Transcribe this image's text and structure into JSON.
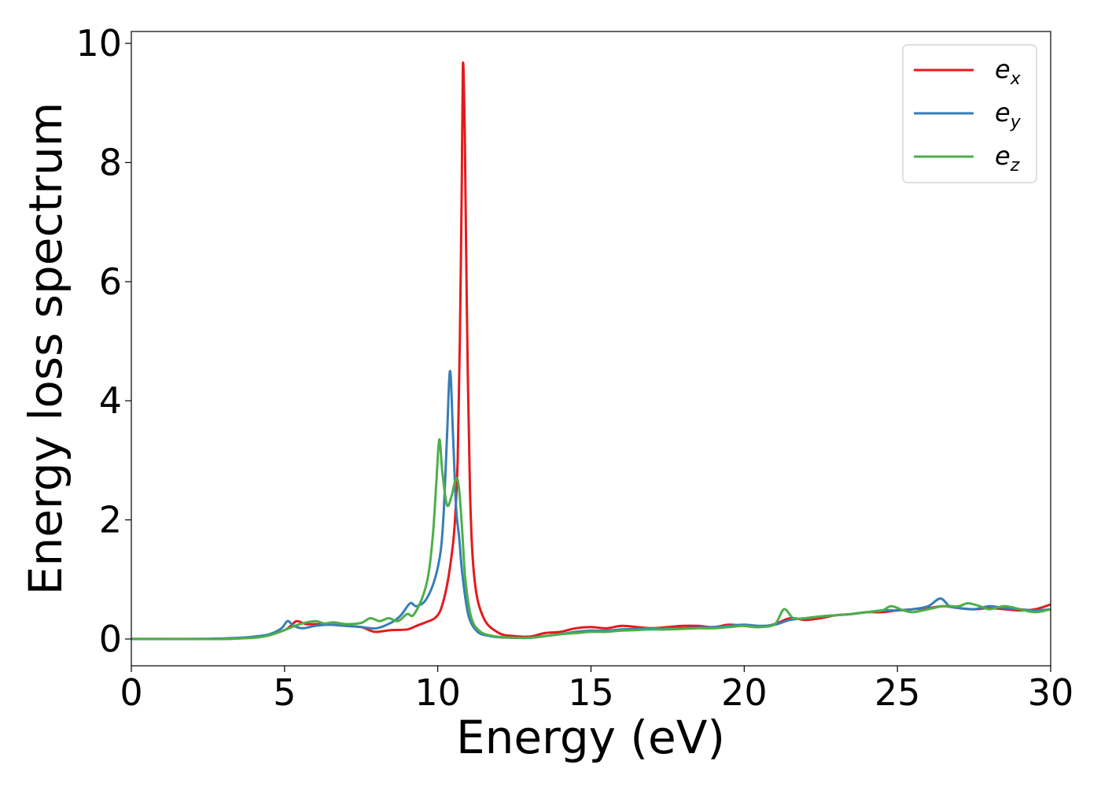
{
  "chart_data": {
    "type": "line",
    "title": "",
    "xlabel": "Energy (eV)",
    "ylabel": "Energy loss spectrum",
    "xlim": [
      0,
      30
    ],
    "ylim": [
      -0.45,
      10.2
    ],
    "xticks": [
      0,
      5,
      10,
      15,
      20,
      25,
      30
    ],
    "yticks": [
      0,
      2,
      4,
      6,
      8,
      10
    ],
    "grid": false,
    "legend_position": "top-right",
    "series": [
      {
        "name": "e",
        "subscript": "x",
        "color": "#e41a1c",
        "x": [
          0,
          1,
          2,
          3,
          3.5,
          4,
          4.5,
          5,
          5.2,
          5.4,
          5.7,
          6,
          6.5,
          7,
          7.5,
          7.8,
          8,
          8.5,
          9,
          9.3,
          9.6,
          9.9,
          10.1,
          10.3,
          10.45,
          10.55,
          10.65,
          10.72,
          10.78,
          10.82,
          10.88,
          10.95,
          11.05,
          11.2,
          11.5,
          12,
          12.5,
          13,
          13.5,
          14,
          14.5,
          15,
          15.5,
          16,
          16.5,
          17,
          17.5,
          18,
          18.5,
          19,
          19.5,
          20,
          20.5,
          21,
          21.5,
          22,
          22.5,
          23,
          23.5,
          24,
          24.5,
          25,
          25.5,
          26,
          26.5,
          27,
          27.5,
          28,
          28.5,
          29,
          29.5,
          30
        ],
        "y": [
          0,
          0,
          0,
          0,
          0.01,
          0.03,
          0.07,
          0.15,
          0.22,
          0.3,
          0.25,
          0.25,
          0.24,
          0.22,
          0.2,
          0.14,
          0.12,
          0.15,
          0.16,
          0.22,
          0.28,
          0.35,
          0.5,
          0.9,
          1.4,
          1.9,
          3.0,
          5.0,
          7.5,
          9.65,
          8.5,
          5.5,
          2.5,
          1.0,
          0.35,
          0.1,
          0.05,
          0.04,
          0.1,
          0.12,
          0.18,
          0.2,
          0.18,
          0.22,
          0.2,
          0.18,
          0.2,
          0.22,
          0.22,
          0.2,
          0.24,
          0.22,
          0.2,
          0.25,
          0.35,
          0.32,
          0.35,
          0.4,
          0.42,
          0.45,
          0.45,
          0.48,
          0.5,
          0.52,
          0.55,
          0.52,
          0.5,
          0.52,
          0.5,
          0.48,
          0.5,
          0.58
        ]
      },
      {
        "name": "e",
        "subscript": "y",
        "color": "#377eb8",
        "x": [
          0,
          1,
          2,
          3,
          3.5,
          4,
          4.5,
          4.9,
          5.1,
          5.3,
          5.6,
          6,
          6.5,
          7,
          7.5,
          8,
          8.5,
          8.8,
          9.1,
          9.3,
          9.6,
          9.9,
          10.1,
          10.2,
          10.3,
          10.4,
          10.5,
          10.6,
          10.7,
          10.8,
          11,
          11.3,
          11.7,
          12,
          12.5,
          13,
          13.5,
          14,
          14.5,
          15,
          15.5,
          16,
          16.5,
          17,
          17.5,
          18,
          18.5,
          19,
          19.5,
          20,
          20.5,
          21,
          21.5,
          22,
          22.5,
          23,
          23.5,
          24,
          24.5,
          25,
          25.5,
          26,
          26.4,
          26.7,
          27,
          27.5,
          28,
          28.5,
          29,
          29.5,
          30
        ],
        "y": [
          0,
          0,
          0,
          0.01,
          0.02,
          0.04,
          0.08,
          0.18,
          0.3,
          0.22,
          0.18,
          0.22,
          0.24,
          0.22,
          0.2,
          0.18,
          0.28,
          0.4,
          0.6,
          0.55,
          0.65,
          1.0,
          1.5,
          2.2,
          3.4,
          4.5,
          3.4,
          2.2,
          1.7,
          1.1,
          0.4,
          0.12,
          0.05,
          0.03,
          0.02,
          0.02,
          0.05,
          0.08,
          0.12,
          0.14,
          0.14,
          0.16,
          0.17,
          0.18,
          0.18,
          0.18,
          0.19,
          0.2,
          0.22,
          0.24,
          0.22,
          0.24,
          0.32,
          0.35,
          0.38,
          0.4,
          0.42,
          0.45,
          0.48,
          0.48,
          0.5,
          0.55,
          0.68,
          0.55,
          0.52,
          0.5,
          0.55,
          0.52,
          0.5,
          0.48,
          0.5
        ]
      },
      {
        "name": "e",
        "subscript": "z",
        "color": "#4daf4a",
        "x": [
          0,
          1,
          2,
          3,
          3.5,
          4,
          4.5,
          5,
          5.5,
          6,
          6.3,
          6.6,
          7,
          7.5,
          7.8,
          8.1,
          8.4,
          8.7,
          9,
          9.2,
          9.5,
          9.7,
          9.85,
          9.95,
          10.05,
          10.15,
          10.3,
          10.45,
          10.6,
          10.7,
          10.8,
          10.9,
          11.1,
          11.4,
          11.8,
          12.2,
          12.6,
          13,
          13.5,
          14,
          14.5,
          15,
          15.5,
          16,
          16.5,
          17,
          17.5,
          18,
          18.5,
          19,
          19.5,
          20,
          20.5,
          21,
          21.3,
          21.6,
          22,
          22.5,
          23,
          23.5,
          24,
          24.5,
          24.8,
          25.2,
          25.5,
          26,
          26.5,
          27,
          27.3,
          27.7,
          28,
          28.5,
          29,
          29.5,
          30
        ],
        "y": [
          0,
          0,
          0,
          0,
          0.01,
          0.02,
          0.06,
          0.15,
          0.25,
          0.3,
          0.26,
          0.28,
          0.25,
          0.27,
          0.35,
          0.3,
          0.35,
          0.3,
          0.42,
          0.4,
          0.7,
          1.1,
          1.8,
          2.6,
          3.35,
          2.8,
          2.25,
          2.4,
          2.7,
          2.5,
          1.8,
          1.0,
          0.35,
          0.12,
          0.05,
          0.03,
          0.02,
          0.02,
          0.05,
          0.08,
          0.1,
          0.12,
          0.12,
          0.14,
          0.15,
          0.16,
          0.16,
          0.17,
          0.18,
          0.18,
          0.2,
          0.22,
          0.2,
          0.25,
          0.5,
          0.35,
          0.35,
          0.38,
          0.4,
          0.42,
          0.45,
          0.48,
          0.55,
          0.48,
          0.45,
          0.5,
          0.55,
          0.55,
          0.6,
          0.55,
          0.5,
          0.55,
          0.5,
          0.45,
          0.5
        ]
      }
    ]
  }
}
